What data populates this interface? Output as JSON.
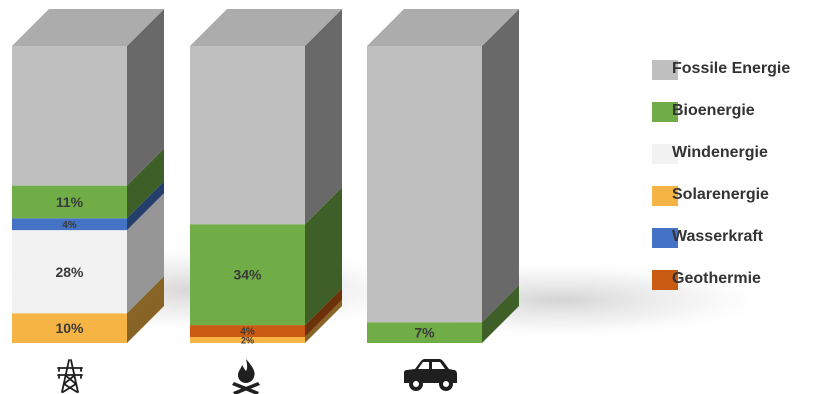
{
  "chart_data": {
    "type": "bar",
    "stacked": true,
    "style": "3d-stacked-columns",
    "categories": [
      "Strom",
      "Wärme",
      "Verkehr"
    ],
    "category_icons": [
      "power-pylon-icon",
      "campfire-icon",
      "car-icon"
    ],
    "ylim": [
      0,
      100
    ],
    "series": [
      {
        "name": "Solarenergie",
        "color": "#F5B443",
        "values": [
          10,
          2,
          0
        ],
        "labels": [
          "10%",
          "2%",
          ""
        ]
      },
      {
        "name": "Geothermie",
        "color": "#C85A12",
        "values": [
          0,
          4,
          0
        ],
        "labels": [
          "",
          "4%",
          ""
        ]
      },
      {
        "name": "Windenergie",
        "color": "#F2F2F2",
        "values": [
          28,
          0,
          0
        ],
        "labels": [
          "28%",
          "",
          ""
        ]
      },
      {
        "name": "Wasserkraft",
        "color": "#4472C4",
        "values": [
          4,
          0,
          0
        ],
        "labels": [
          "4%",
          "",
          ""
        ]
      },
      {
        "name": "Bioenergie",
        "color": "#70AD47",
        "values": [
          11,
          34,
          7
        ],
        "labels": [
          "11%",
          "34%",
          "7%"
        ]
      },
      {
        "name": "Fossile Energie",
        "color": "#BFBFBF",
        "values": [
          47,
          60,
          93
        ],
        "labels": [
          "",
          "",
          ""
        ]
      }
    ],
    "legend": {
      "position": "right",
      "order": [
        "Fossile Energie",
        "Bioenergie",
        "Windenergie",
        "Solarenergie",
        "Wasserkraft",
        "Geothermie"
      ]
    }
  }
}
